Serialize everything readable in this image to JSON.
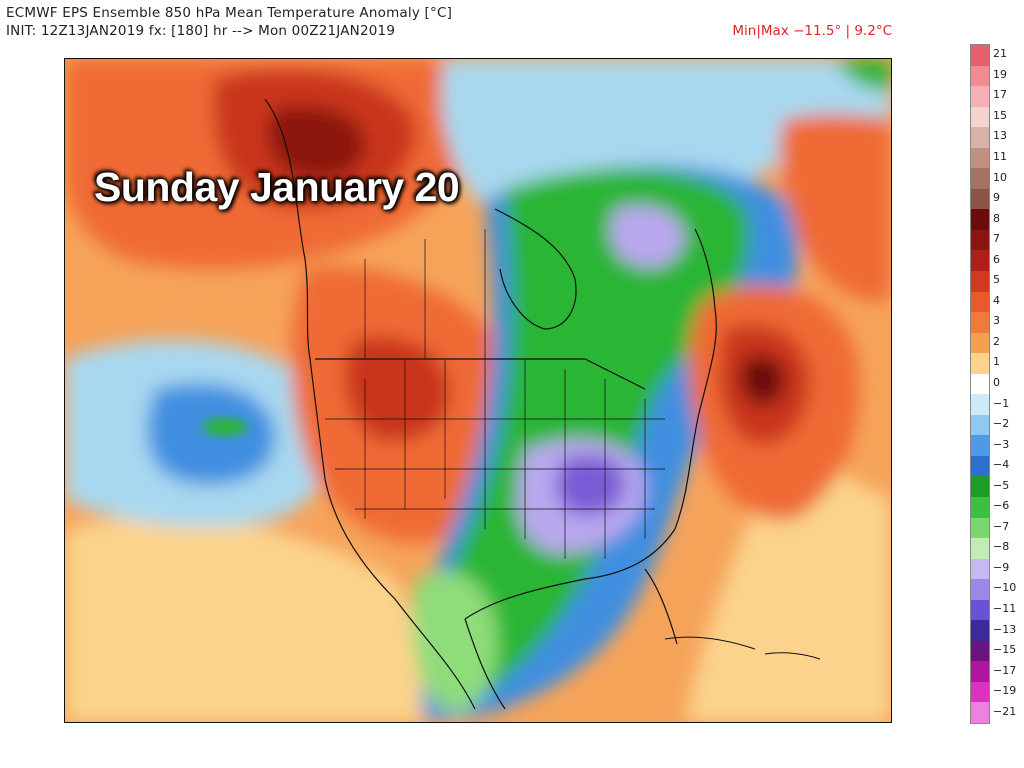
{
  "header": {
    "title_line1": "ECMWF EPS Ensemble 850 hPa Mean Temperature Anomaly [°C]",
    "title_line2": "INIT: 12Z13JAN2019 fx: [180] hr --> Mon 00Z21JAN2019",
    "minmax": "Min|Max −11.5° | 9.2°C"
  },
  "overlay": {
    "date_label": "Sunday January 20"
  },
  "map": {
    "region": "North America",
    "colors": {
      "warm_dark": "#6b0d0a",
      "warm_red": "#c9361e",
      "warm_orange": "#ef6a34",
      "warm_light": "#f6a35a",
      "warm_pale": "#fbd38c",
      "neutral": "#ffffff",
      "cool_light": "#a8d8f0",
      "cool_blue": "#3f8fe0",
      "cool_green": "#2cb534",
      "cool_lightgreen": "#8fdc7a",
      "cold_purple": "#7a5cd6",
      "cold_violet": "#b9a7ee",
      "borders": "#111111"
    }
  },
  "colorbar": {
    "labels": [
      "21",
      "19",
      "17",
      "15",
      "13",
      "11",
      "10",
      "9",
      "8",
      "7",
      "6",
      "5",
      "4",
      "3",
      "2",
      "1",
      "0",
      "−1",
      "−2",
      "−3",
      "−4",
      "−5",
      "−6",
      "−7",
      "−8",
      "−9",
      "−10",
      "−11",
      "−13",
      "−15",
      "−17",
      "−19",
      "−21"
    ],
    "colors": [
      "#e8606e",
      "#f08a93",
      "#f5b0b5",
      "#f5d3d0",
      "#d9b3a8",
      "#c09080",
      "#a57361",
      "#8a5547",
      "#6b0d0a",
      "#8b1510",
      "#b0201a",
      "#d03a20",
      "#e85a2a",
      "#f07a3a",
      "#f5a050",
      "#fbd38c",
      "#ffffff",
      "#cdeaf8",
      "#8fc8f0",
      "#4f9ae6",
      "#2f6fd0",
      "#1e9c2a",
      "#3cc040",
      "#7bd870",
      "#c2ecb5",
      "#c8b8f0",
      "#9b87e6",
      "#6a52d4",
      "#3a2a9a",
      "#6a1480",
      "#b015a0",
      "#dc30c0",
      "#ee80e0"
    ]
  }
}
